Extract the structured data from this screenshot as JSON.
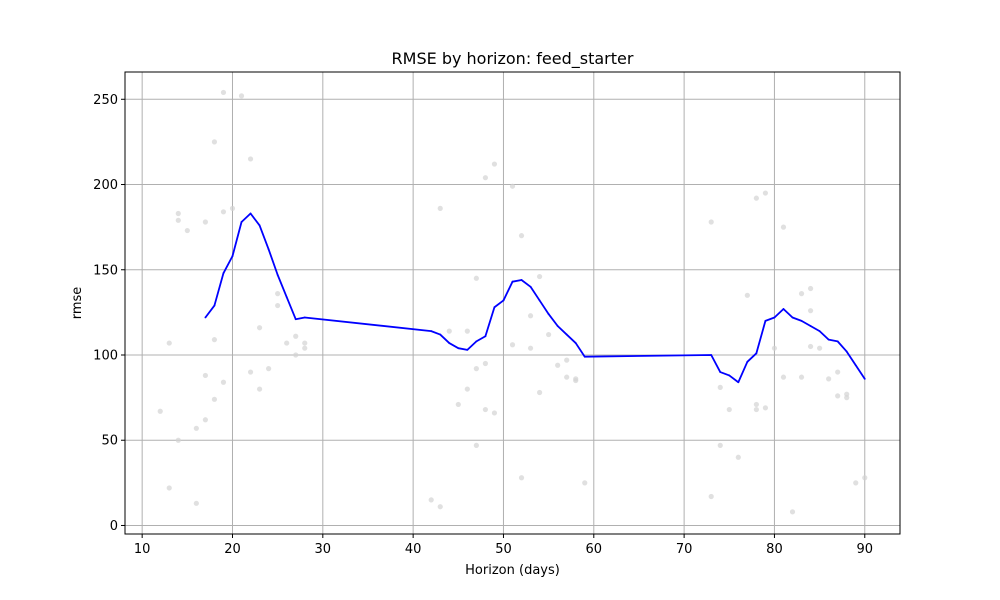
{
  "chart_data": {
    "type": "line",
    "title": "RMSE by horizon: feed_starter",
    "xlabel": "Horizon (days)",
    "ylabel": "rmse",
    "xlim": [
      8.1,
      93.9
    ],
    "ylim": [
      -5,
      266
    ],
    "xticks": [
      10,
      20,
      30,
      40,
      50,
      60,
      70,
      80,
      90
    ],
    "yticks": [
      0,
      50,
      100,
      150,
      200,
      250
    ],
    "grid": true,
    "colors": {
      "line": "#0000ff",
      "points": "#d3d3d3",
      "grid": "#b0b0b0"
    },
    "series": [
      {
        "type": "line",
        "x": [
          17,
          18,
          19,
          20,
          21,
          22,
          23,
          24,
          25,
          26,
          27,
          28,
          42,
          43,
          44,
          45,
          46,
          47,
          48,
          49,
          50,
          51,
          52,
          53,
          54,
          55,
          56,
          57,
          58,
          59,
          73,
          74,
          75,
          76,
          77,
          78,
          79,
          80,
          81,
          82,
          83,
          84,
          85,
          86,
          87,
          88,
          89,
          90
        ],
        "y": [
          122,
          129,
          148,
          158,
          178,
          183,
          176,
          162,
          147,
          134,
          121,
          122,
          114,
          112,
          107,
          104,
          103,
          108,
          111,
          128,
          132,
          143,
          144,
          140,
          132,
          124,
          117,
          112,
          107,
          99,
          100,
          90,
          88,
          84,
          96,
          101,
          120,
          122,
          127,
          122,
          120,
          117,
          114,
          109,
          108,
          102,
          94,
          86
        ]
      },
      {
        "type": "scatter",
        "x": [
          12,
          13,
          13,
          14,
          14,
          14,
          15,
          16,
          16,
          17,
          17,
          17,
          18,
          18,
          18,
          19,
          19,
          19,
          20,
          21,
          22,
          22,
          23,
          23,
          24,
          25,
          25,
          26,
          27,
          27,
          28,
          28,
          42,
          43,
          43,
          44,
          45,
          46,
          46,
          47,
          47,
          47,
          48,
          48,
          48,
          49,
          49,
          51,
          51,
          52,
          52,
          53,
          53,
          54,
          54,
          55,
          56,
          57,
          57,
          58,
          58,
          59,
          73,
          73,
          74,
          74,
          75,
          76,
          77,
          78,
          78,
          78,
          79,
          79,
          80,
          81,
          81,
          82,
          83,
          83,
          84,
          84,
          84,
          85,
          86,
          87,
          87,
          88,
          88,
          89,
          90
        ],
        "y": [
          67,
          22,
          107,
          50,
          183,
          179,
          173,
          57,
          13,
          178,
          88,
          62,
          225,
          109,
          74,
          254,
          184,
          84,
          186,
          252,
          215,
          90,
          116,
          80,
          92,
          136,
          129,
          107,
          111,
          100,
          107,
          104,
          15,
          186,
          11,
          114,
          71,
          114,
          80,
          145,
          92,
          47,
          204,
          95,
          68,
          212,
          66,
          199,
          106,
          170,
          28,
          123,
          104,
          146,
          78,
          112,
          94,
          97,
          87,
          86,
          85,
          25,
          178,
          17,
          81,
          47,
          68,
          40,
          135,
          192,
          71,
          68,
          195,
          69,
          104,
          175,
          87,
          8,
          136,
          87,
          139,
          126,
          105,
          104,
          86,
          90,
          76,
          77,
          75,
          25,
          28
        ]
      }
    ]
  }
}
